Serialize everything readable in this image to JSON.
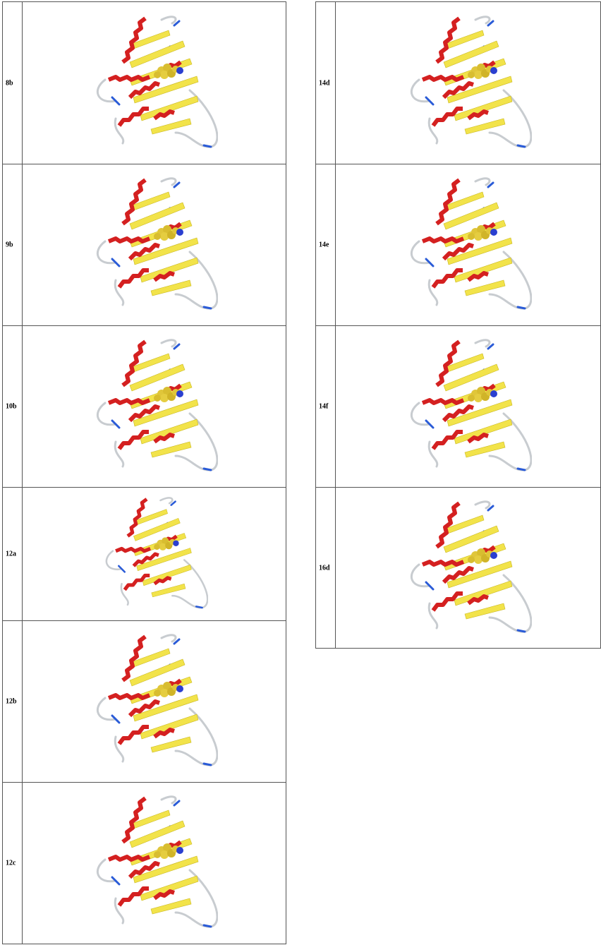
{
  "left_table": {
    "rows": [
      {
        "label": "8b"
      },
      {
        "label": "9b"
      },
      {
        "label": "10b"
      },
      {
        "label": "12a"
      },
      {
        "label": "12b"
      },
      {
        "label": "12c"
      }
    ]
  },
  "right_table": {
    "rows": [
      {
        "label": "14d"
      },
      {
        "label": "14e"
      },
      {
        "label": "14f"
      },
      {
        "label": "16d"
      }
    ]
  }
}
